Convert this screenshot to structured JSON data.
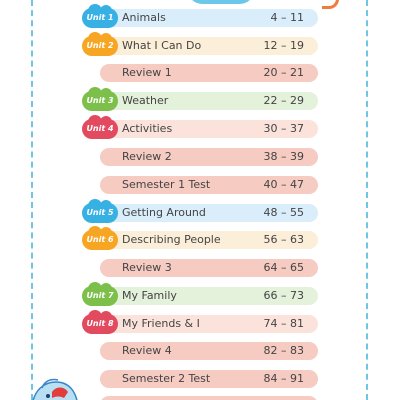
{
  "colors": {
    "border_dash": "#6ec6e4",
    "unit_blue": "#37b0e3",
    "unit_orange": "#f6a623",
    "unit_green": "#7cc04b",
    "unit_red": "#e24b5f",
    "review_bar": "#f6cbc2"
  },
  "entries": [
    {
      "badge": "Unit 1",
      "title": "Animals",
      "pages": "4 – 11"
    },
    {
      "badge": "Unit 2",
      "title": "What I Can Do",
      "pages": "12 – 19"
    },
    {
      "title": "Review 1",
      "pages": "20 – 21"
    },
    {
      "badge": "Unit 3",
      "title": "Weather",
      "pages": "22 – 29"
    },
    {
      "badge": "Unit 4",
      "title": "Activities",
      "pages": "30 – 37"
    },
    {
      "title": "Review 2",
      "pages": "38 – 39"
    },
    {
      "title": "Semester 1 Test",
      "pages": "40 – 47"
    },
    {
      "badge": "Unit 5",
      "title": "Getting Around",
      "pages": "48 – 55"
    },
    {
      "badge": "Unit 6",
      "title": "Describing People",
      "pages": "56 – 63"
    },
    {
      "title": "Review 3",
      "pages": "64 – 65"
    },
    {
      "badge": "Unit 7",
      "title": "My Family",
      "pages": "66 – 73"
    },
    {
      "badge": "Unit 8",
      "title": "My Friends & I",
      "pages": "74 – 81"
    },
    {
      "title": "Review 4",
      "pages": "82 – 83"
    },
    {
      "title": "Semester 2 Test",
      "pages": "84 – 91"
    }
  ]
}
